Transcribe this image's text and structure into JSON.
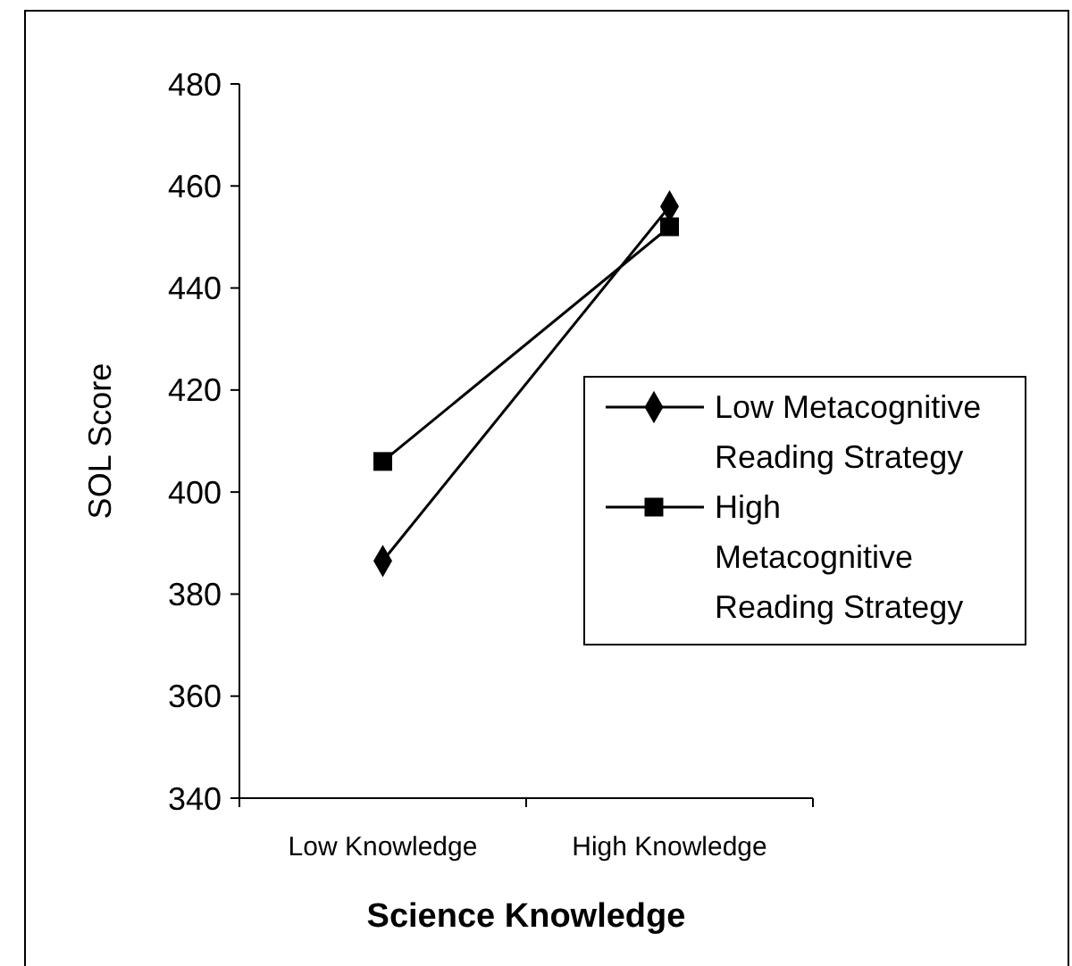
{
  "chart_data": {
    "type": "line",
    "xlabel": "Science Knowledge",
    "ylabel": "SOL Score",
    "categories": [
      "Low Knowledge",
      "High Knowledge"
    ],
    "series": [
      {
        "name": "Low Metacognitive Reading Strategy",
        "color": "#000000",
        "marker": "diamond",
        "values": [
          386.5,
          456
        ]
      },
      {
        "name": "High Metacognitive Reading Strategy",
        "color": "#000000",
        "marker": "square",
        "values": [
          406,
          452
        ]
      }
    ],
    "ylim": [
      340,
      480
    ],
    "yticks": [
      340,
      360,
      380,
      400,
      420,
      440,
      460,
      480
    ],
    "legend": "right",
    "grid": false,
    "line_style": "solid"
  }
}
